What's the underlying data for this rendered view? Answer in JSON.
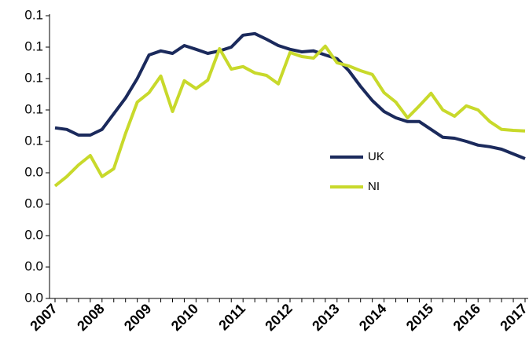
{
  "chart_data": {
    "type": "line",
    "categories": [
      "2007",
      null,
      null,
      null,
      "2008",
      null,
      null,
      null,
      "2009",
      null,
      null,
      null,
      "2010",
      null,
      null,
      null,
      "2011",
      null,
      null,
      null,
      "2012",
      null,
      null,
      null,
      "2013",
      null,
      null,
      null,
      "2014",
      null,
      null,
      null,
      "2015",
      null,
      null,
      null,
      "2016",
      null,
      null,
      null,
      "2017"
    ],
    "series": [
      {
        "name": "UK",
        "color": "#1b2a5c",
        "values": [
          0.0543,
          0.0538,
          0.052,
          0.052,
          0.0538,
          0.0588,
          0.0638,
          0.07,
          0.0775,
          0.0788,
          0.078,
          0.0805,
          0.0793,
          0.078,
          0.0788,
          0.08,
          0.0838,
          0.0843,
          0.0825,
          0.0805,
          0.0793,
          0.0785,
          0.0788,
          0.0775,
          0.0763,
          0.0725,
          0.0675,
          0.063,
          0.0595,
          0.0575,
          0.0563,
          0.0563,
          0.0538,
          0.0513,
          0.051,
          0.05,
          0.0488,
          0.0483,
          0.0475,
          0.046,
          0.0445
        ]
      },
      {
        "name": "NI",
        "color": "#c8d92b",
        "values": [
          0.0358,
          0.0388,
          0.0425,
          0.0455,
          0.0388,
          0.0413,
          0.0525,
          0.0625,
          0.0655,
          0.0708,
          0.0595,
          0.0693,
          0.0668,
          0.0695,
          0.0795,
          0.073,
          0.0738,
          0.0718,
          0.071,
          0.0683,
          0.0783,
          0.077,
          0.0765,
          0.0803,
          0.075,
          0.074,
          0.0725,
          0.0713,
          0.0655,
          0.0625,
          0.0575,
          0.0613,
          0.0653,
          0.06,
          0.058,
          0.0613,
          0.06,
          0.0563,
          0.0538,
          0.0535,
          0.0533
        ]
      }
    ],
    "ylim": [
      0,
      0.09
    ],
    "yticks": [
      {
        "value": 0,
        "label": "0.0"
      },
      {
        "value": 0.01,
        "label": "0.0"
      },
      {
        "value": 0.02,
        "label": "0.0"
      },
      {
        "value": 0.03,
        "label": "0.0"
      },
      {
        "value": 0.04,
        "label": "0.0"
      },
      {
        "value": 0.05,
        "label": "0.1"
      },
      {
        "value": 0.06,
        "label": "0.1"
      },
      {
        "value": 0.07,
        "label": "0.1"
      },
      {
        "value": 0.08,
        "label": "0.1"
      },
      {
        "value": 0.09,
        "label": "0.1"
      }
    ],
    "grid": false,
    "legend": "right"
  }
}
